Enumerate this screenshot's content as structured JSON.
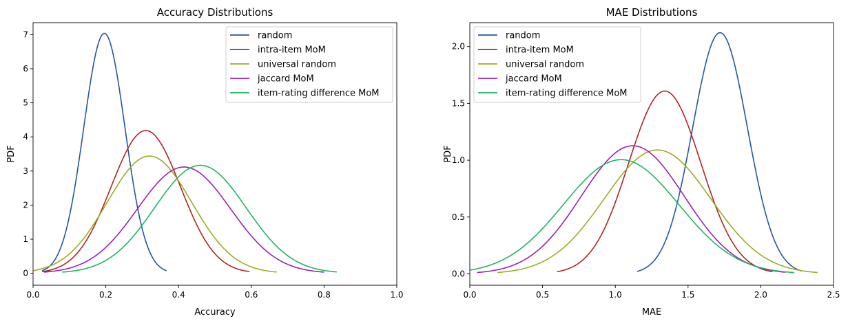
{
  "chart_data": [
    {
      "type": "line",
      "title": "Accuracy Distributions",
      "xlabel": "Accuracy",
      "ylabel": "PDF",
      "xlim": [
        0,
        1
      ],
      "ylim": [
        -0.35,
        7.35
      ],
      "xticks": [
        0.0,
        0.2,
        0.4,
        0.6,
        0.8,
        1.0
      ],
      "xtick_labels": [
        "0.0",
        "0.2",
        "0.4",
        "0.6",
        "0.8",
        "1.0"
      ],
      "yticks": [
        0,
        1,
        2,
        3,
        4,
        5,
        6,
        7
      ],
      "ytick_labels": [
        "0",
        "1",
        "2",
        "3",
        "4",
        "5",
        "6",
        "7"
      ],
      "legend_position": "top-right",
      "grid": false,
      "series": [
        {
          "name": "random",
          "color": "#1f56a8",
          "mean": 0.196,
          "std": 0.0567,
          "x_range": [
            0.025,
            0.367
          ]
        },
        {
          "name": "intra-item MoM",
          "color": "#b22222",
          "mean": 0.31,
          "std": 0.0953,
          "x_range": [
            0.025,
            0.595
          ]
        },
        {
          "name": "universal random",
          "color": "#9aad1e",
          "mean": 0.32,
          "std": 0.116,
          "x_range": [
            0.0,
            0.67
          ]
        },
        {
          "name": "jaccard MoM",
          "color": "#9b1fb5",
          "mean": 0.415,
          "std": 0.128,
          "x_range": [
            0.03,
            0.8
          ]
        },
        {
          "name": "item-rating difference MoM",
          "color": "#1db65e",
          "mean": 0.46,
          "std": 0.126,
          "x_range": [
            0.08,
            0.835
          ]
        }
      ]
    },
    {
      "type": "line",
      "title": "MAE Distributions",
      "xlabel": "MAE",
      "ylabel": "PDF",
      "xlim": [
        0,
        2.5
      ],
      "ylim": [
        -0.1,
        2.21
      ],
      "xticks": [
        0.0,
        0.5,
        1.0,
        1.5,
        2.0,
        2.5
      ],
      "xtick_labels": [
        "0.0",
        "0.5",
        "1.0",
        "1.5",
        "2.0",
        "2.5"
      ],
      "yticks": [
        0.0,
        0.5,
        1.0,
        1.5,
        2.0
      ],
      "ytick_labels": [
        "0.0",
        "0.5",
        "1.0",
        "1.5",
        "2.0"
      ],
      "legend_position": "top-left",
      "grid": false,
      "series": [
        {
          "name": "random",
          "color": "#1f56a8",
          "mean": 1.72,
          "std": 0.188,
          "x_range": [
            1.15,
            2.28
          ]
        },
        {
          "name": "intra-item MoM",
          "color": "#b22222",
          "mean": 1.34,
          "std": 0.248,
          "x_range": [
            0.6,
            2.08
          ]
        },
        {
          "name": "universal random",
          "color": "#9aad1e",
          "mean": 1.29,
          "std": 0.366,
          "x_range": [
            0.19,
            2.39
          ]
        },
        {
          "name": "jaccard MoM",
          "color": "#9b1fb5",
          "mean": 1.12,
          "std": 0.354,
          "x_range": [
            0.05,
            2.17
          ]
        },
        {
          "name": "item-rating difference MoM",
          "color": "#1db65e",
          "mean": 1.04,
          "std": 0.397,
          "x_range": [
            0.0,
            2.23
          ]
        }
      ]
    }
  ]
}
